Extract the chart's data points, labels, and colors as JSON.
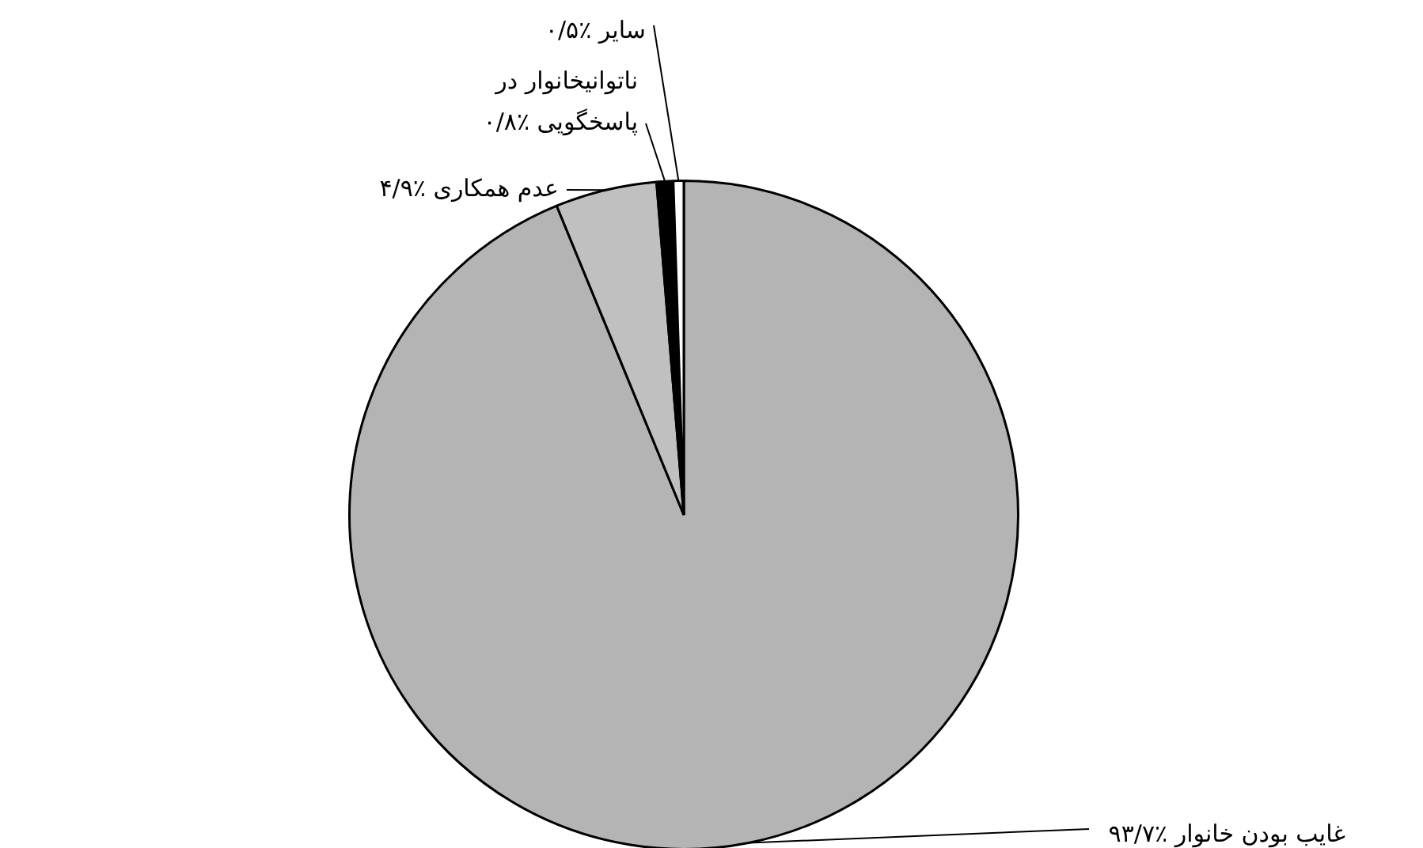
{
  "chart_data": {
    "type": "pie",
    "categories": [
      "غایب بودن خانوار",
      "عدم همکاری",
      "ناتوانیخانوار در پاسخگویی",
      "سایر"
    ],
    "values": [
      93.7,
      4.9,
      0.8,
      0.5
    ],
    "value_labels": [
      "٪۹۳/۷",
      "٪۴/۹",
      "٪۰/۸",
      "٪۰/۵"
    ],
    "colors": [
      "#b4b4b4",
      "#c0c0c0",
      "#000000",
      "#ffffff"
    ],
    "legend": false
  }
}
